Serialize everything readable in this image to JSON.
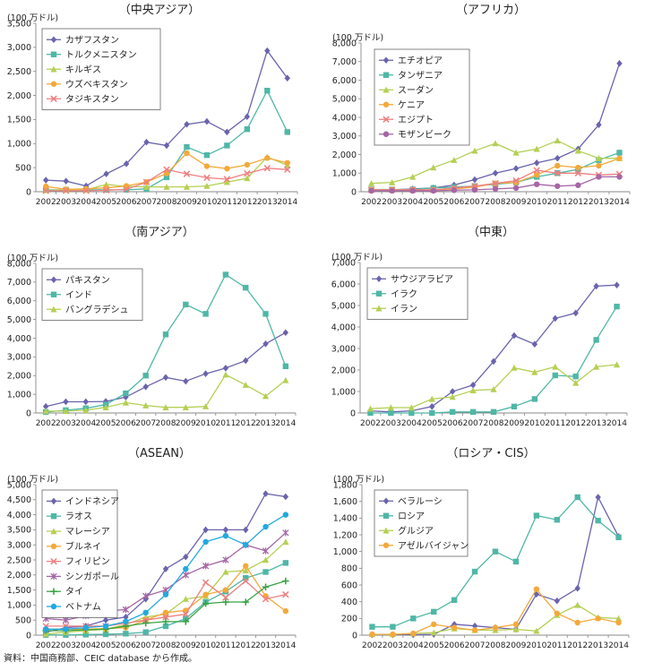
{
  "source": "資料：中国商務部、CEIC database から作成。",
  "colors": {
    "purple": "#6a63ad",
    "teal": "#4fb7a6",
    "lime": "#b5cf54",
    "orange": "#f3a93a",
    "pink": "#ee7f80",
    "magenta": "#a666a6",
    "green": "#3aa346",
    "cyan": "#22a9df"
  },
  "chart_data": [
    {
      "type": "line",
      "title": "（中央アジア）",
      "unit": "(100 万ドル)",
      "x": [
        "2002",
        "2003",
        "2004",
        "2005",
        "2006",
        "2007",
        "2008",
        "2009",
        "2010",
        "2011",
        "2012",
        "2013",
        "2014"
      ],
      "ylim": [
        0,
        3500
      ],
      "yticks": [
        "0",
        "500",
        "1,000",
        "1,500",
        "2,000",
        "2,500",
        "3,000",
        "3,500"
      ],
      "series": [
        {
          "name": "カザフスタン",
          "color": "purple",
          "marker": "diamond",
          "values": [
            240,
            220,
            120,
            370,
            580,
            1030,
            960,
            1400,
            1460,
            1240,
            1560,
            2930,
            2360
          ]
        },
        {
          "name": "トルクメニスタン",
          "color": "teal",
          "marker": "square",
          "values": [
            40,
            40,
            40,
            40,
            40,
            60,
            300,
            930,
            760,
            960,
            1300,
            2100,
            1240
          ]
        },
        {
          "name": "キルギス",
          "color": "lime",
          "marker": "triangle",
          "values": [
            30,
            40,
            40,
            150,
            110,
            100,
            100,
            100,
            120,
            200,
            280,
            720,
            550
          ]
        },
        {
          "name": "ウズベキスタン",
          "color": "orange",
          "marker": "circle",
          "values": [
            110,
            50,
            60,
            80,
            120,
            200,
            380,
            800,
            530,
            480,
            560,
            700,
            600
          ]
        },
        {
          "name": "タジキスタン",
          "color": "pink",
          "marker": "x",
          "values": [
            20,
            20,
            20,
            30,
            50,
            200,
            460,
            370,
            290,
            260,
            380,
            490,
            460
          ]
        }
      ]
    },
    {
      "type": "line",
      "title": "（アフリカ）",
      "unit": "(100 万ドル)",
      "x": [
        "2002",
        "2003",
        "2004",
        "2005",
        "2006",
        "2007",
        "2008",
        "2009",
        "2010",
        "2011",
        "2012",
        "2013",
        "2014"
      ],
      "ylim": [
        0,
        8000
      ],
      "yticks": [
        "0",
        "1,000",
        "2,000",
        "3,000",
        "4,000",
        "5,000",
        "6,000",
        "7,000",
        "8,000"
      ],
      "series": [
        {
          "name": "エチオピア",
          "color": "purple",
          "marker": "diamond",
          "values": [
            100,
            100,
            150,
            200,
            360,
            650,
            1000,
            1250,
            1550,
            1800,
            2300,
            3600,
            6900
          ]
        },
        {
          "name": "タンザニア",
          "color": "teal",
          "marker": "square",
          "values": [
            120,
            120,
            120,
            200,
            250,
            300,
            400,
            500,
            800,
            1000,
            1200,
            1700,
            2100
          ]
        },
        {
          "name": "スーダン",
          "color": "lime",
          "marker": "triangle",
          "values": [
            450,
            500,
            800,
            1300,
            1700,
            2200,
            2600,
            2100,
            2300,
            2750,
            2200,
            1800,
            1800
          ]
        },
        {
          "name": "ケニア",
          "color": "orange",
          "marker": "circle",
          "values": [
            100,
            100,
            100,
            100,
            150,
            250,
            450,
            500,
            900,
            1400,
            1300,
            1400,
            1800
          ]
        },
        {
          "name": "エジプト",
          "color": "pink",
          "marker": "x",
          "values": [
            100,
            100,
            100,
            100,
            200,
            300,
            450,
            600,
            1150,
            1000,
            1000,
            900,
            950
          ]
        },
        {
          "name": "モザンビーク",
          "color": "magenta",
          "marker": "circle",
          "values": [
            50,
            50,
            50,
            50,
            80,
            100,
            150,
            200,
            400,
            300,
            350,
            800,
            800
          ]
        }
      ]
    },
    {
      "type": "line",
      "title": "（南アジア）",
      "unit": "(100 万ドル)",
      "x": [
        "2002",
        "2003",
        "2004",
        "2005",
        "2006",
        "2007",
        "2008",
        "2009",
        "2010",
        "2011",
        "2012",
        "2013",
        "2014"
      ],
      "ylim": [
        0,
        8000
      ],
      "yticks": [
        "0",
        "1,000",
        "2,000",
        "3,000",
        "4,000",
        "5,000",
        "6,000",
        "7,000",
        "8,000"
      ],
      "series": [
        {
          "name": "パキスタン",
          "color": "purple",
          "marker": "diamond",
          "values": [
            350,
            600,
            600,
            620,
            850,
            1400,
            1900,
            1700,
            2100,
            2400,
            2800,
            3700,
            4300
          ]
        },
        {
          "name": "インド",
          "color": "teal",
          "marker": "square",
          "values": [
            50,
            150,
            250,
            450,
            1050,
            2000,
            4200,
            5800,
            5300,
            7400,
            6700,
            5300,
            2500
          ]
        },
        {
          "name": "バングラデシュ",
          "color": "lime",
          "marker": "triangle",
          "values": [
            100,
            100,
            150,
            300,
            550,
            400,
            300,
            300,
            350,
            2050,
            1500,
            900,
            1750
          ]
        }
      ]
    },
    {
      "type": "line",
      "title": "（中東）",
      "unit": "(100 万ドル)",
      "x": [
        "2002",
        "2003",
        "2004",
        "2005",
        "2006",
        "2007",
        "2008",
        "2009",
        "2010",
        "2011",
        "2012",
        "2013",
        "2014"
      ],
      "ylim": [
        0,
        7000
      ],
      "yticks": [
        "0",
        "1,000",
        "2,000",
        "3,000",
        "4,000",
        "5,000",
        "6,000",
        "7,000"
      ],
      "series": [
        {
          "name": "サウジアラビア",
          "color": "purple",
          "marker": "diamond",
          "values": [
            100,
            50,
            100,
            300,
            1000,
            1300,
            2400,
            3600,
            3200,
            4400,
            4650,
            5900,
            5950
          ]
        },
        {
          "name": "イラク",
          "color": "teal",
          "marker": "square",
          "values": [
            0,
            0,
            0,
            0,
            50,
            50,
            50,
            300,
            650,
            1750,
            1700,
            3400,
            4950
          ]
        },
        {
          "name": "イラン",
          "color": "lime",
          "marker": "triangle",
          "values": [
            200,
            250,
            250,
            650,
            750,
            1050,
            1100,
            2100,
            1900,
            2150,
            1400,
            2150,
            2250
          ]
        }
      ]
    },
    {
      "type": "line",
      "title": "（ASEAN）",
      "unit": "(100 万ドル)",
      "x": [
        "2002",
        "2003",
        "2004",
        "2005",
        "2006",
        "2007",
        "2008",
        "2009",
        "2010",
        "2011",
        "2012",
        "2013",
        "2014"
      ],
      "ylim": [
        0,
        5000
      ],
      "yticks": [
        "0",
        "500",
        "1,000",
        "1,500",
        "2,000",
        "2,500",
        "3,000",
        "3,500",
        "4,000",
        "4,500",
        "5,000"
      ],
      "series": [
        {
          "name": "インドネシア",
          "color": "purple",
          "marker": "diamond",
          "values": [
            100,
            250,
            300,
            500,
            600,
            1200,
            2200,
            2600,
            3500,
            3500,
            3500,
            4700,
            4600
          ]
        },
        {
          "name": "ラオス",
          "color": "teal",
          "marker": "square",
          "values": [
            10,
            10,
            20,
            30,
            50,
            100,
            300,
            550,
            1100,
            1450,
            1900,
            2100,
            2400
          ]
        },
        {
          "name": "マレーシア",
          "color": "lime",
          "marker": "triangle",
          "values": [
            40,
            100,
            150,
            200,
            350,
            600,
            700,
            1200,
            1300,
            2100,
            2150,
            2500,
            3100
          ]
        },
        {
          "name": "ブルネイ",
          "color": "orange",
          "marker": "circle",
          "values": [
            200,
            200,
            200,
            220,
            250,
            500,
            750,
            820,
            1350,
            1500,
            2300,
            1300,
            800
          ]
        },
        {
          "name": "フィリピン",
          "color": "pink",
          "marker": "x",
          "values": [
            300,
            300,
            300,
            300,
            400,
            500,
            600,
            700,
            1750,
            1250,
            1800,
            1200,
            1350
          ]
        },
        {
          "name": "シンガポール",
          "color": "magenta",
          "marker": "asterisk",
          "values": [
            550,
            500,
            650,
            800,
            850,
            1300,
            1500,
            2000,
            2300,
            2500,
            3000,
            2800,
            3400
          ]
        },
        {
          "name": "タイ",
          "color": "green",
          "marker": "plus",
          "values": [
            150,
            150,
            180,
            200,
            300,
            400,
            450,
            450,
            1050,
            1100,
            1100,
            1600,
            1800
          ]
        },
        {
          "name": "ベトナム",
          "color": "cyan",
          "marker": "circle",
          "values": [
            200,
            200,
            250,
            300,
            450,
            750,
            1350,
            2200,
            3100,
            3300,
            3000,
            3600,
            4000
          ]
        }
      ]
    },
    {
      "type": "line",
      "title": "（ロシア・CIS）",
      "unit": "(100 万ドル)",
      "x": [
        "2002",
        "2003",
        "2004",
        "2005",
        "2006",
        "2007",
        "2008",
        "2009",
        "2010",
        "2011",
        "2012",
        "2013",
        "2014"
      ],
      "ylim": [
        0,
        1800
      ],
      "yticks": [
        "0",
        "200",
        "400",
        "600",
        "800",
        "1,000",
        "1,200",
        "1,400",
        "1,600",
        "1,800"
      ],
      "series": [
        {
          "name": "ベラルーシ",
          "color": "purple",
          "marker": "diamond",
          "values": [
            5,
            5,
            5,
            10,
            130,
            110,
            90,
            70,
            490,
            410,
            560,
            1650,
            1180
          ]
        },
        {
          "name": "ロシア",
          "color": "teal",
          "marker": "square",
          "values": [
            100,
            100,
            200,
            280,
            420,
            760,
            1000,
            880,
            1430,
            1380,
            1650,
            1370,
            1170
          ]
        },
        {
          "name": "グルジア",
          "color": "lime",
          "marker": "triangle",
          "values": [
            10,
            10,
            20,
            30,
            80,
            60,
            60,
            70,
            50,
            240,
            360,
            210,
            200
          ]
        },
        {
          "name": "アゼルバイジャン",
          "color": "orange",
          "marker": "circle",
          "values": [
            10,
            10,
            20,
            130,
            90,
            60,
            90,
            130,
            550,
            260,
            150,
            200,
            150
          ]
        }
      ]
    }
  ]
}
